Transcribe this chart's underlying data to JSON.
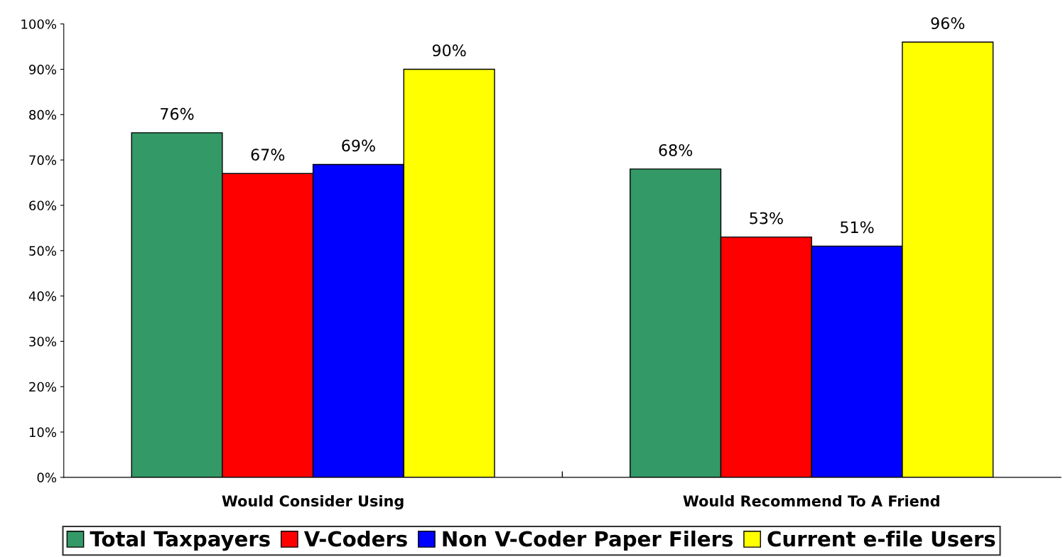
{
  "chart_data": {
    "type": "bar",
    "categories": [
      "Would Consider Using",
      "Would Recommend To A Friend"
    ],
    "series": [
      {
        "name": "Total Taxpayers",
        "color": "#339966",
        "values": [
          76,
          68
        ],
        "value_labels": [
          "76%",
          "68%"
        ]
      },
      {
        "name": "V-Coders",
        "color": "#ff0000",
        "values": [
          67,
          53
        ],
        "value_labels": [
          "67%",
          "53%"
        ]
      },
      {
        "name": "Non V-Coder Paper Filers",
        "color": "#0000ff",
        "values": [
          69,
          51
        ],
        "value_labels": [
          "69%",
          "51%"
        ]
      },
      {
        "name": "Current e-file Users",
        "color": "#ffff00",
        "values": [
          90,
          96
        ],
        "value_labels": [
          "90%",
          "96%"
        ]
      }
    ],
    "ylim": [
      0,
      100
    ],
    "yticks": [
      {
        "value": 0,
        "label": "0%"
      },
      {
        "value": 10,
        "label": "10%"
      },
      {
        "value": 20,
        "label": "20%"
      },
      {
        "value": 30,
        "label": "30%"
      },
      {
        "value": 40,
        "label": "40%"
      },
      {
        "value": 50,
        "label": "50%"
      },
      {
        "value": 60,
        "label": "60%"
      },
      {
        "value": 70,
        "label": "70%"
      },
      {
        "value": 80,
        "label": "80%"
      },
      {
        "value": 90,
        "label": "90%"
      },
      {
        "value": 100,
        "label": "100%"
      }
    ],
    "grid": false,
    "legend": "bottom"
  }
}
